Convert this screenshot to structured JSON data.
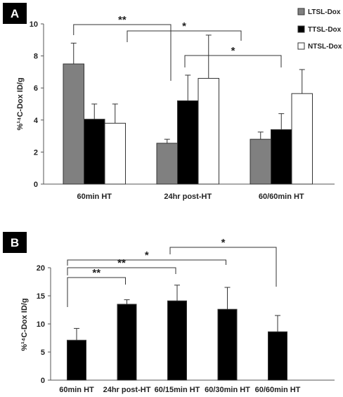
{
  "chart_data": [
    {
      "panel": "A",
      "type": "bar",
      "ylabel": "%¹⁴C-Dox ID/g",
      "ylim": [
        0,
        10
      ],
      "yticks": [
        0,
        2,
        4,
        6,
        8,
        10
      ],
      "categories": [
        "60min HT",
        "24hr post-HT",
        "60/60min HT"
      ],
      "series": [
        {
          "name": "LTSL-Dox",
          "color": "#808080",
          "values": [
            7.5,
            2.55,
            2.8
          ],
          "errors": [
            1.3,
            0.25,
            0.45
          ]
        },
        {
          "name": "TTSL-Dox",
          "color": "#000000",
          "values": [
            4.05,
            5.2,
            3.4
          ],
          "errors": [
            0.95,
            1.6,
            1.0
          ]
        },
        {
          "name": "NTSL-Dox",
          "color": "#ffffff",
          "values": [
            3.8,
            6.6,
            5.65
          ],
          "errors": [
            1.2,
            2.7,
            1.5
          ]
        }
      ],
      "legend_position": "top-right",
      "significance": [
        {
          "label": "**",
          "from": [
            0,
            0
          ],
          "to": [
            1,
            0
          ]
        },
        {
          "label": "*",
          "from": [
            0,
            2
          ],
          "to": [
            2,
            0
          ]
        },
        {
          "label": "*",
          "from": [
            1,
            1
          ],
          "to": [
            2,
            0
          ]
        }
      ]
    },
    {
      "panel": "B",
      "type": "bar",
      "ylabel": "%¹⁴C-Dox ID/g",
      "ylim": [
        0,
        20
      ],
      "yticks": [
        0,
        5,
        10,
        15,
        20
      ],
      "categories": [
        "60min HT",
        "24hr post-HT",
        "60/15min HT",
        "60/30min HT",
        "60/60min HT"
      ],
      "series": [
        {
          "name": "",
          "color": "#000000",
          "values": [
            7.1,
            13.5,
            14.1,
            12.6,
            8.6
          ],
          "errors": [
            2.1,
            0.8,
            2.8,
            3.9,
            2.9
          ]
        }
      ],
      "significance": [
        {
          "label": "**",
          "from": 0,
          "to": 1
        },
        {
          "label": "**",
          "from": 0,
          "to": 2
        },
        {
          "label": "*",
          "from": 0,
          "to": 3
        },
        {
          "label": "*",
          "from": 2,
          "to": 4
        }
      ]
    }
  ]
}
